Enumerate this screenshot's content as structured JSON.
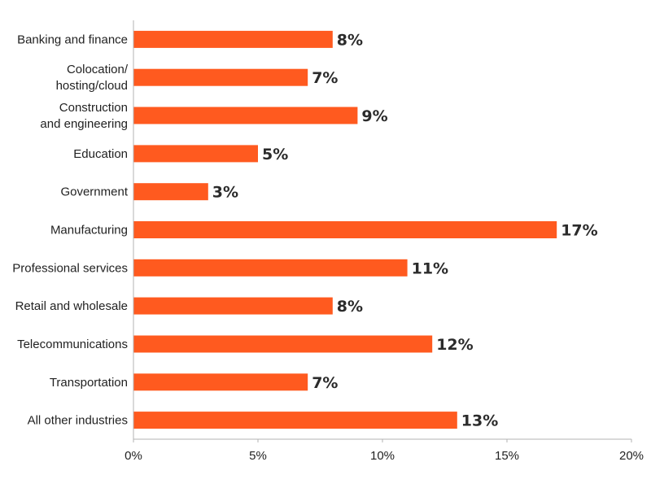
{
  "chart_data": {
    "type": "bar",
    "orientation": "horizontal",
    "categories": [
      "Banking and finance",
      "Colocation/\nhosting/cloud",
      "Construction\nand engineering",
      "Education",
      "Government",
      "Manufacturing",
      "Professional services",
      "Retail and wholesale",
      "Telecommunications",
      "Transportation",
      "All other industries"
    ],
    "values": [
      8,
      7,
      9,
      5,
      3,
      17,
      11,
      8,
      12,
      7,
      13
    ],
    "value_labels": [
      "8%",
      "7%",
      "9%",
      "5%",
      "3%",
      "17%",
      "11%",
      "8%",
      "12%",
      "7%",
      "13%"
    ],
    "xlim": [
      0,
      20
    ],
    "xticks": [
      0,
      5,
      10,
      15,
      20
    ],
    "xtick_labels": [
      "0%",
      "5%",
      "10%",
      "15%",
      "20%"
    ],
    "title": "",
    "xlabel": "",
    "ylabel": "",
    "grid": false,
    "bar_color": "#ff5a1f"
  }
}
